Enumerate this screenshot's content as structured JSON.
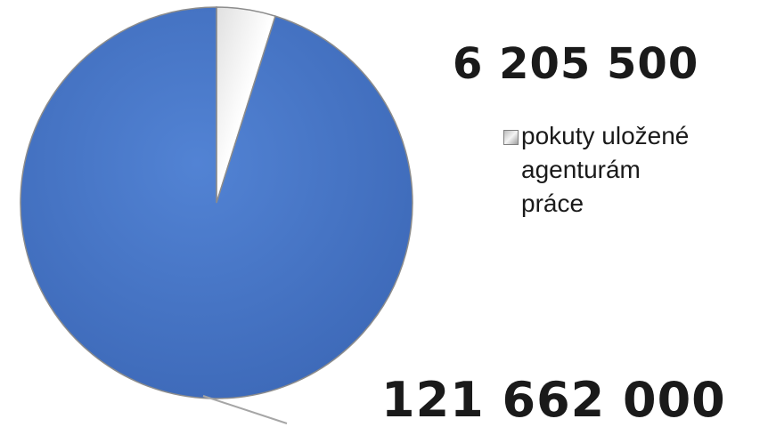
{
  "chart_data": {
    "type": "pie",
    "slices": [
      {
        "name": "",
        "value": 121662000,
        "label": "121 662 000",
        "color": "#4472c4"
      },
      {
        "name": "pokuty uložené agenturám práce",
        "value": 6205500,
        "label": "6 205 500",
        "color": "#f2f2f2"
      }
    ],
    "legend": {
      "position": "right",
      "entries": [
        "pokuty uložené agenturám práce"
      ]
    }
  }
}
